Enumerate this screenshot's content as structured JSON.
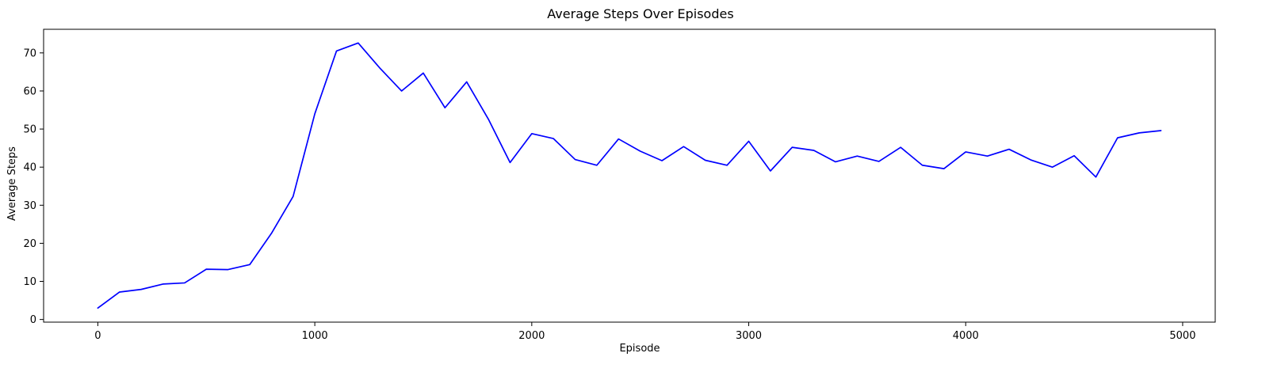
{
  "chart_data": {
    "type": "line",
    "title": "Average Steps Over Episodes",
    "xlabel": "Episode",
    "ylabel": "Average Steps",
    "xlim": [
      -250,
      5150
    ],
    "ylim": [
      -0.7,
      76.2
    ],
    "xticks": [
      0,
      1000,
      2000,
      3000,
      4000,
      5000
    ],
    "yticks": [
      0,
      10,
      20,
      30,
      40,
      50,
      60,
      70
    ],
    "grid": false,
    "series": [
      {
        "name": "Average Steps",
        "color": "#0000ff",
        "x": [
          0,
          100,
          200,
          300,
          400,
          500,
          600,
          700,
          800,
          900,
          1000,
          1100,
          1200,
          1300,
          1400,
          1500,
          1600,
          1700,
          1800,
          1900,
          2000,
          2100,
          2200,
          2300,
          2400,
          2500,
          2600,
          2700,
          2800,
          2900,
          3000,
          3100,
          3200,
          3300,
          3400,
          3500,
          3600,
          3700,
          3800,
          3900,
          4000,
          4100,
          4200,
          4300,
          4400,
          4500,
          4600,
          4700,
          4800,
          4900
        ],
        "values": [
          3.0,
          7.2,
          7.9,
          9.3,
          9.6,
          13.2,
          13.1,
          14.4,
          22.6,
          32.3,
          54.0,
          70.5,
          72.6,
          66.0,
          60.0,
          64.7,
          55.6,
          62.4,
          52.6,
          41.2,
          48.8,
          47.5,
          42.0,
          40.5,
          47.4,
          44.2,
          41.7,
          45.4,
          41.8,
          40.5,
          46.8,
          39.0,
          45.2,
          44.4,
          41.4,
          42.9,
          41.5,
          45.2,
          40.5,
          39.6,
          44.0,
          42.9,
          44.7,
          41.9,
          40.0,
          43.0,
          37.4,
          47.7,
          49.0,
          49.6
        ]
      }
    ]
  }
}
